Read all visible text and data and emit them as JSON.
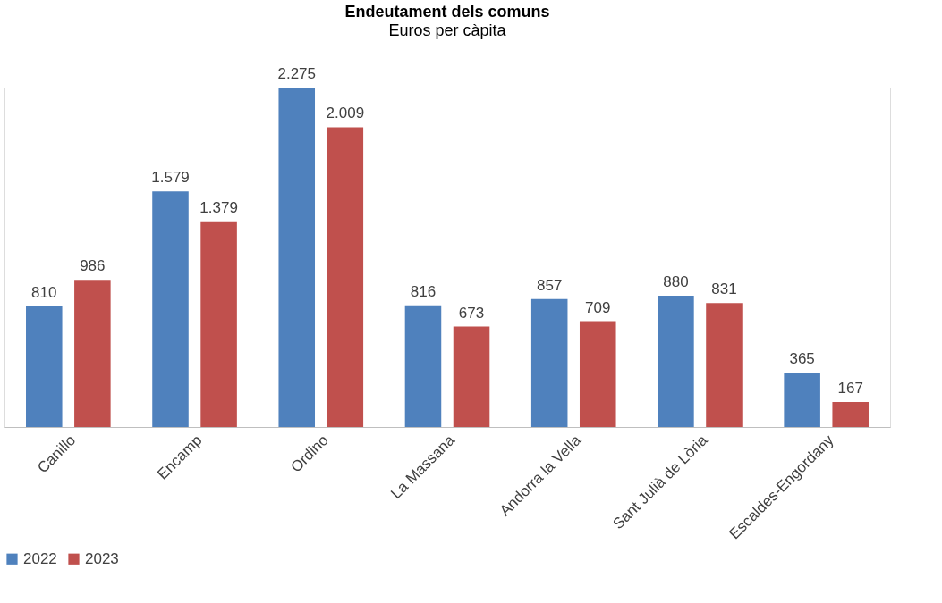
{
  "chart_data": {
    "type": "bar",
    "title": "Endeutament dels comuns",
    "subtitle": "Euros per càpita",
    "categories": [
      "Canillo",
      "Encamp",
      "Ordino",
      "La Massana",
      "Andorra la Vella",
      "Sant Julià de Lòria",
      "Escaldes-Engordany"
    ],
    "series": [
      {
        "name": "2022",
        "color": "#4f81bd",
        "values": [
          810,
          1579,
          2275,
          816,
          857,
          880,
          365
        ],
        "value_labels": [
          "810",
          "1.579",
          "2.275",
          "816",
          "857",
          "880",
          "365"
        ]
      },
      {
        "name": "2023",
        "color": "#c0504d",
        "values": [
          986,
          1379,
          2009,
          673,
          709,
          831,
          167
        ],
        "value_labels": [
          "986",
          "1.379",
          "2.009",
          "673",
          "709",
          "831",
          "167"
        ]
      }
    ],
    "legend": "bottom left",
    "grid": false
  }
}
